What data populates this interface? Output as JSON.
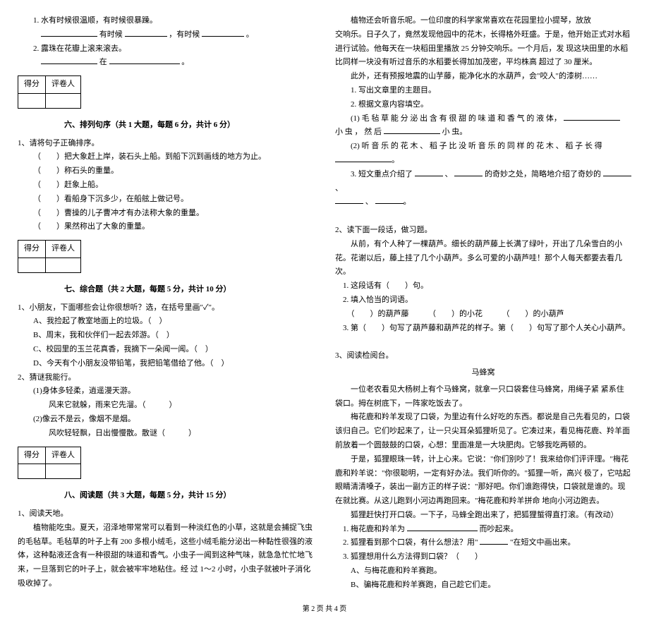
{
  "left": {
    "q1_line1": "1. 水有时候很温顺，有时候很暴躁。",
    "q1_line2_pre": "有时候",
    "q1_line2_mid": "，有时候",
    "q1_line2_end": "。",
    "q2_line1": "2. 露珠在花瓣上滚来滚去。",
    "q2_line2_mid": "在",
    "q2_line2_end": "。",
    "scorebox": {
      "c1": "得分",
      "c2": "评卷人"
    },
    "sec6": "六、排列句序（共 1 大题，每题 6 分，共计 6 分）",
    "order_intro": "1、请将句子正确排序。",
    "order_items": [
      "（　　）把大象赶上岸，装石头上船。到船下沉到画线的地方为止。",
      "（　　）称石头的重量。",
      "（　　）赶象上船。",
      "（　　）看船身下沉多少，在船舷上做记号。",
      "（　　）曹操的儿子曹冲才有办法称大象的重量。",
      "（　　）果然称出了大象的重量。"
    ],
    "sec7": "七、综合题（共 2 大题，每题 5 分，共计 10 分）",
    "comp1_intro": "1、小朋友，下面哪些会让你很想听？选，在括号里画\"✓\"。",
    "comp1_items": [
      "A、我捡起了教室地面上的垃圾。（　）",
      "B、周末，我和伙伴们一起去郊游。（　）",
      "C、校园里的玉兰花真香，我摘下一朵闻一闻。（　）",
      "D、今天有个小朋友没带铅笔，我把铅笔借给了他。（　）"
    ],
    "comp2_intro": "2、猜谜我能行。",
    "comp2_items": [
      "(1)身体多轻柔，逍遥漫天游。",
      "　　风来它就躲，雨来它先溜。（　　　）",
      "(2)像云不是云，像烟不是烟。",
      "　　风吹轻轻飘，日出慢慢散。散谜（　　　）"
    ],
    "sec8": "八、阅读题（共 3 大题，每题 5 分，共计 15 分）",
    "read1_title": "1、阅读天地。",
    "read1_p1": "　　植物能吃虫。夏天，沼泽地带常常可以看到一种淡红色的小草，这就是会捕捉飞虫的毛毡草。毛毡草的叶子上有 200 多根小绒毛，这些小绒毛能分泌出一种黏性很强的液体，这种黏液还含有一种很甜的味道和香气。小虫子一闻到这种气味，就急急忙忙地飞来，一旦落到它的叶子上，就会被牢牢地粘住。经 过 1～2 小时，小虫子就被叶子消化吸收掉了。"
  },
  "right": {
    "read1_p2": "　　植物还会听音乐呢。一位印度的科学家常喜欢在花园里拉小提琴，放放",
    "read1_p3": "交响乐。日子久了，竟然发现他园中的花木，长得格外旺盛。于是，他开始正式对水稻进行试验。他每天在一块稻田里播放 25 分钟交响乐。一个月后，发 现这块田里的水稻比同样一块没有听过音乐的水稻要长得加加茂密，平均株高 超过了 30 厘米。",
    "read1_p4": "　　此外，还有预报地震的山芋藤，能净化水的水葫芦，会\"咬人\"的漆树……",
    "read1_q1": "　　1. 写出文章里的主题目。",
    "read1_q2": "　　2. 根据文意内容填空。",
    "read1_q2a_pre": "　　(1) 毛 毡 草 能 分 泌 出 含 有 很 甜 的 味 道 和 香 气 的 液 体，",
    "read1_q2a_mid": "小 虫 ， 然 后",
    "read1_q2a_end": "小 虫。",
    "read1_q2b_pre": "　　(2) 听 音 乐 的 花 木 、 稻 子 比 没 听 音 乐 的 同 样 的 花 木 、 稻 子 长 得",
    "read1_q3_pre": "　　3. 短文重点介绍了",
    "read1_q3_mid": "、",
    "read1_q3_mid2": "的奇妙之处，简略地介绍了奇妙的",
    "read1_q3_end": "、",
    "read1_q3_end2": "、",
    "read2_title": "2、读下面一段话，做习题。",
    "read2_p1": "　　从前，有个人种了一棵葫芦。细长的葫芦藤上长满了绿叶，开出了几朵雪白的小花。花谢以后，藤上挂了几个小葫芦。多么可爱的小葫芦哇！那个人每天都要去看几次。",
    "read2_q1": "　1. 这段话有（　　）句。",
    "read2_q2": "　2. 填入恰当的词语。",
    "read2_q2a": "　　（　　）的葫芦藤　　　（　　）的小花　　　（　　）的小葫芦",
    "read2_q3": "　3. 第（　　）句写了葫芦藤和葫芦花的样子。第（　　）句写了那个人关心小葫芦。",
    "read3_title": "3、阅读检阅台。",
    "read3_heading": "马蜂窝",
    "read3_p1": "　　一位老农看见大杨树上有个马蜂窝，就拿一只口袋套住马蜂窝，用绳子紧 紧系住袋口。拇在树底下，一阵家吃饭去了。",
    "read3_p2": "　　梅花鹿和羚羊发现了口袋，为里边有什么好吃的东西。都说是自己先看见的，口袋该归自己。它们吵起来了，让一只尖耳朵狐狸听见了。它凑过来，看见梅花鹿、羚羊面前放着一个圆鼓鼓的口袋，心想：里面准是一大块肥肉。它够我吃两顿的。",
    "read3_p3": "　　于是，狐狸眼珠一转，计上心来。它说：\"你们别吵了！我来给你们评评理。\"梅花鹿和羚羊说：\"你很聪明，一定有好办法。我们听你的。\"狐狸一听，高兴 极了，它咕起眼睛清清嗓子，装出一副方正的样子说：\"那好吧。你们谁跑得快，口袋就是谁的。现在就比赛。从这儿跑到小河边再跑回来。\"梅花鹿和羚羊拼命 地向小河边跑去。",
    "read3_p4": "　　狐狸赶快打开口袋。一下子，马蜂全跑出来了，把狐狸蜇得直打滚。（有改动）",
    "read3_q1": "　1. 梅花鹿和羚羊为",
    "read3_q1_end": "而吵起来。",
    "read3_q2_pre": "　2. 狐狸看到那个口袋，有什么想法？用\"",
    "read3_q2_end": "\"在短文中画出来。",
    "read3_q3": "　3. 狐狸想用什么方法得到口袋？（　　）",
    "read3_q3a": "　　A、与梅花鹿和羚羊赛跑。",
    "read3_q3b": "　　B、骗梅花鹿和羚羊赛跑，自己趁它们走。"
  },
  "footer": "第 2 页 共 4 页"
}
